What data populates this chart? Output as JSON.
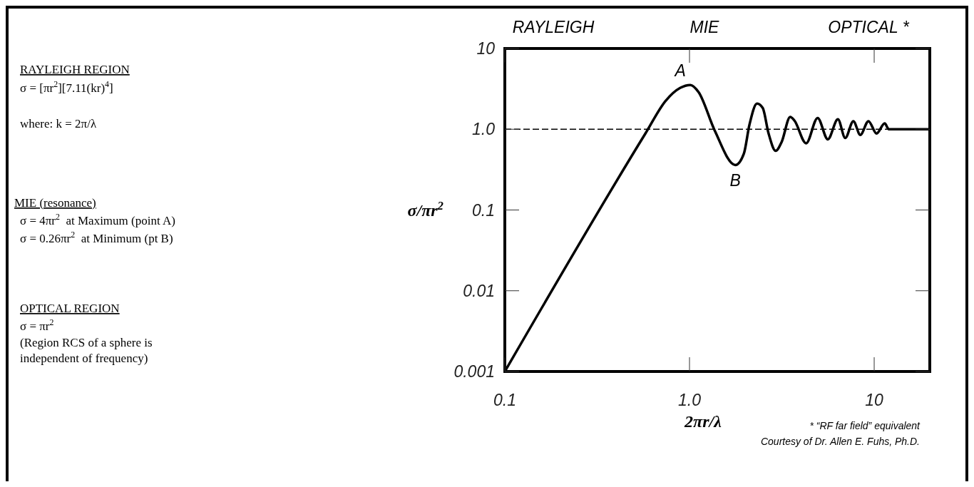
{
  "chart_data": {
    "type": "line",
    "xlabel": "2πr/λ",
    "ylabel": "σ/πr$^{2}$",
    "log": "xy",
    "grid": false,
    "line_style": "solid",
    "xlim": [
      0.1,
      20
    ],
    "xticks": [
      0.1,
      {
        "value": 1,
        "label": "1.0"
      },
      10
    ],
    "ylim": [
      0.001,
      10
    ],
    "yticks": [
      0.001,
      0.01,
      0.1,
      {
        "value": 1,
        "label": "1.0"
      },
      10
    ],
    "ref_lines": [
      {
        "axis": "y",
        "value": 1,
        "label": null,
        "color": "#000000",
        "line_style": "dashed"
      }
    ],
    "series": [
      {
        "color": "#000000",
        "x": [
          0.1,
          0.577,
          0.743,
          0.89,
          1.01,
          1.12,
          1.37,
          1.77,
          1.97,
          2.11,
          2.32,
          2.49,
          2.68,
          2.93,
          3.15,
          3.51,
          3.7,
          4.28,
          4.94,
          5.61,
          6.36,
          6.97,
          7.71,
          8.41,
          9.31,
          10.3,
          11.4,
          12,
          20
        ],
        "values": [
          0.001,
          0.885,
          2.25,
          3.25,
          3.53,
          2.88,
          0.96,
          0.36,
          0.5,
          1.13,
          2.08,
          1.84,
          0.885,
          0.54,
          0.69,
          1.42,
          1.28,
          0.67,
          1.38,
          0.75,
          1.33,
          0.78,
          1.26,
          0.85,
          1.26,
          0.885,
          1.18,
          1,
          1
        ]
      }
    ],
    "annotations": [
      "RAYLEIGH",
      "MIE",
      "OPTICAL *",
      {
        "text": "A",
        "x": 1.01,
        "y": 3.53
      },
      {
        "text": "B",
        "x": 1.77,
        "y": 0.36
      },
      "RAYLEIGH REGION",
      "σ = [πr$^{2}$][7.11(kr)$^{4}$]",
      "where: k = 2π/λ",
      "MIE (resonance)",
      "σ = 4πr$^{2}$  at Maximum (point A)",
      "σ = 0.26πr$^{2}$  at Minimum (pt B)",
      "OPTICAL REGION",
      "σ = πr$^{2}$",
      "(Region RCS of a sphere is",
      "independent of frequency)",
      "* “RF far field” equivalent",
      "Courtesy of Dr. Allen E. Fuhs, Ph.D."
    ]
  }
}
